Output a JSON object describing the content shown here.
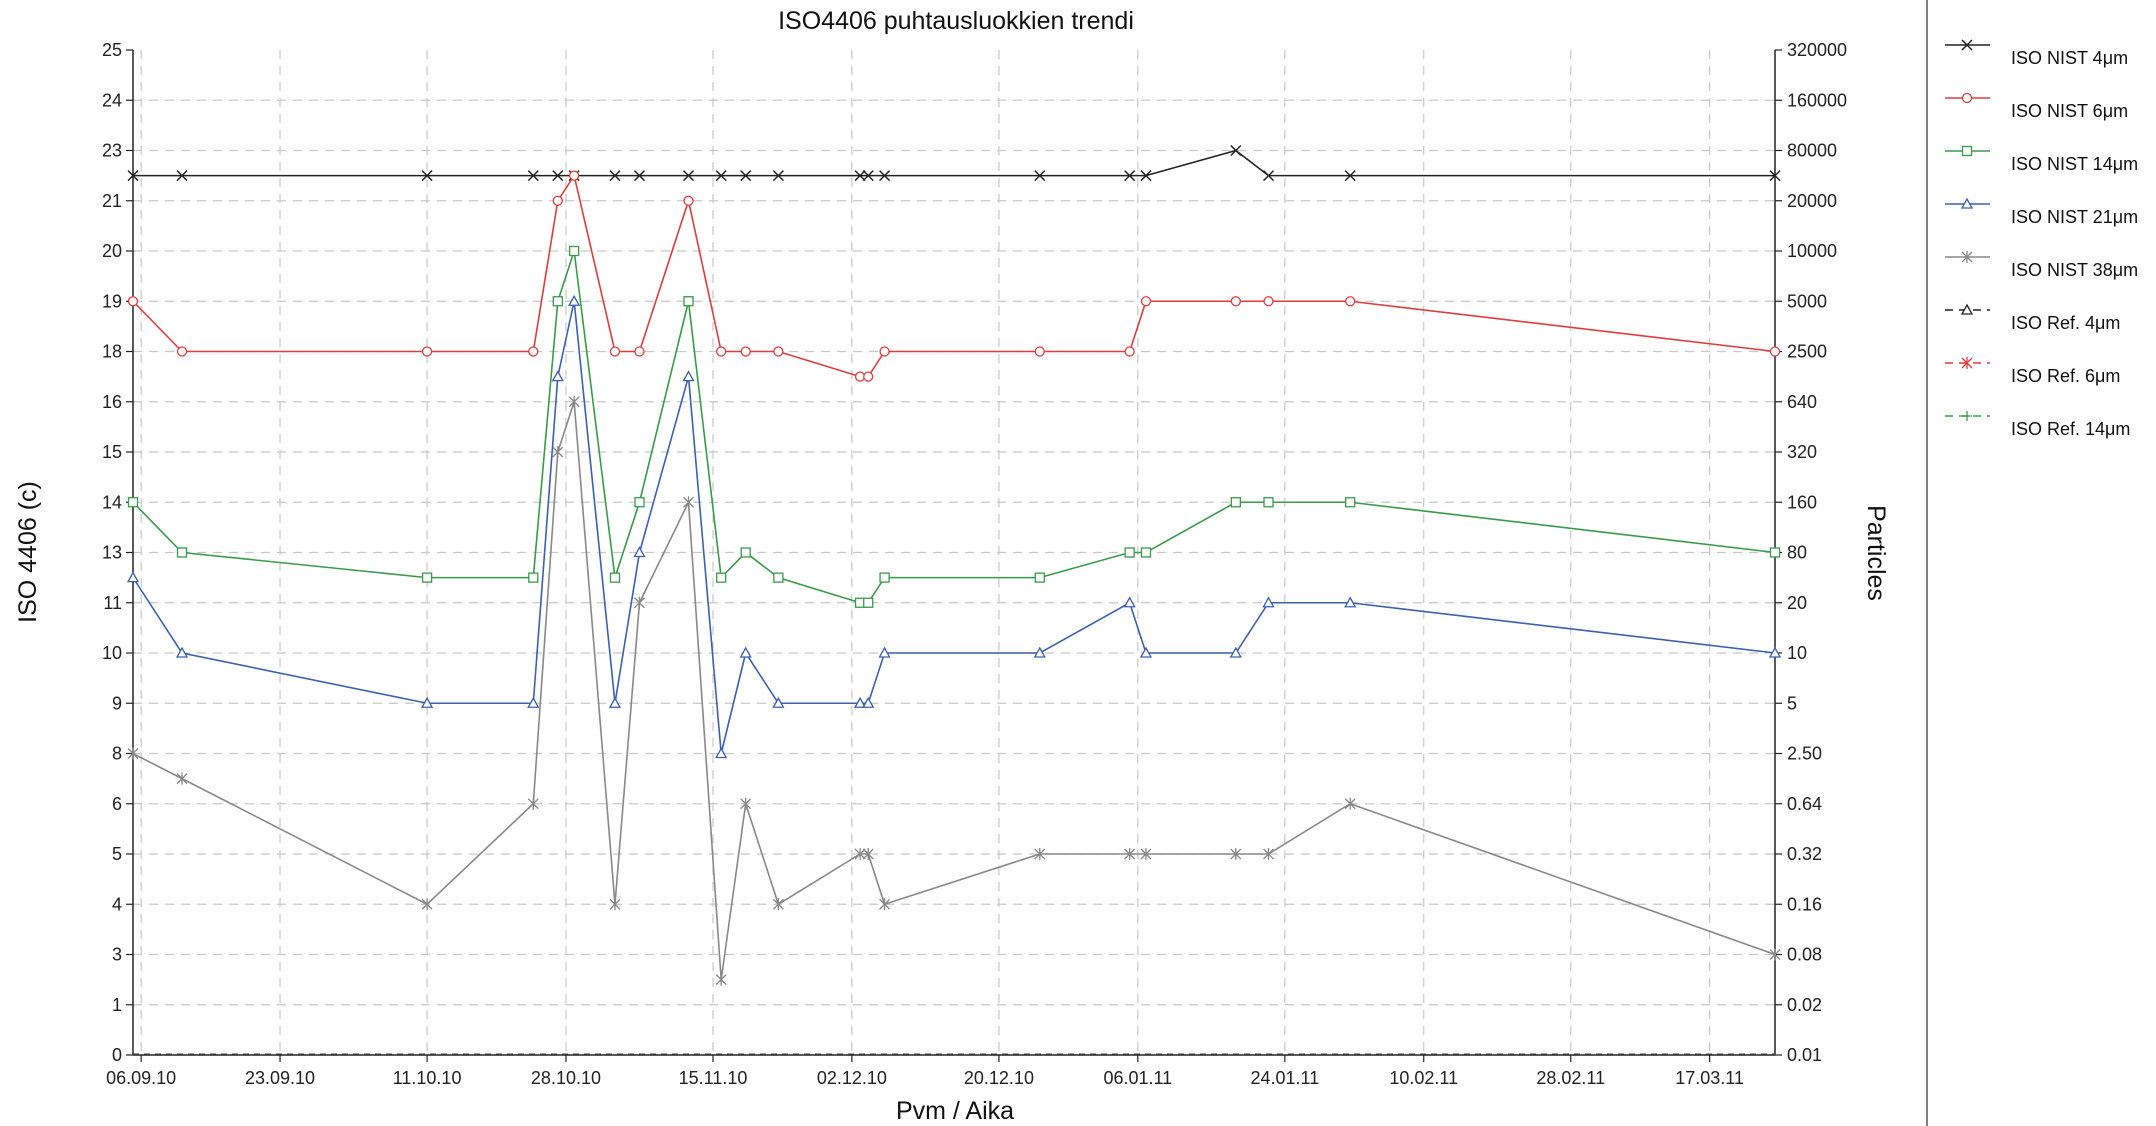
{
  "chart_data": {
    "type": "line",
    "title": "ISO4406 puhtausluokkien trendi",
    "xlabel": "Pvm / Aika",
    "ylabel": "ISO 4406 (c)",
    "ylabel_right": "Particles",
    "x_tick_labels": [
      "06.09.10",
      "23.09.10",
      "11.10.10",
      "28.10.10",
      "15.11.10",
      "02.12.10",
      "20.12.10",
      "06.01.11",
      "24.01.11",
      "10.02.11",
      "28.02.11",
      "17.03.11"
    ],
    "y_tick_labels": [
      "0",
      "1",
      "2",
      "3",
      "4",
      "5",
      "6",
      "8",
      "9",
      "10",
      "11",
      "13",
      "14",
      "15",
      "16",
      "18",
      "19",
      "20",
      "21",
      "23",
      "24",
      "25"
    ],
    "y_right_tick_labels": [
      "0.01",
      "0.02",
      "0.08",
      "0.16",
      "0.32",
      "0.64",
      "2.50",
      "5",
      "10",
      "20",
      "80",
      "160",
      "320",
      "640",
      "2500",
      "5000",
      "10000",
      "20000",
      "80000",
      "160000",
      "320000"
    ],
    "grid": true,
    "legend_position": "right",
    "x_dates": [
      "05.09.10",
      "11.09.10",
      "11.10.10",
      "24.10.10",
      "27.10.10",
      "29.10.10",
      "03.11.10",
      "06.11.10",
      "12.11.10",
      "16.11.10",
      "19.11.10",
      "23.11.10",
      "03.12.10",
      "04.12.10",
      "06.12.10",
      "25.12.10",
      "05.01.11",
      "07.01.11",
      "18.01.11",
      "22.01.11",
      "01.02.11",
      "25.03.11"
    ],
    "series": [
      {
        "name": "ISO NIST 4μm",
        "color": "#222222",
        "marker": "x",
        "dash": "solid",
        "values": [
          22,
          22,
          22,
          22,
          22,
          22,
          22,
          22,
          22,
          22,
          22,
          22,
          22,
          22,
          22,
          22,
          22,
          22,
          23,
          22,
          22,
          22
        ]
      },
      {
        "name": "ISO NIST 6μm",
        "color": "#e03c3c",
        "marker": "circle",
        "dash": "solid",
        "values": [
          19,
          18,
          18,
          18,
          21,
          22,
          18,
          18,
          21,
          18,
          18,
          18,
          17,
          17,
          18,
          18,
          18,
          19,
          19,
          19,
          19,
          18
        ]
      },
      {
        "name": "ISO NIST 14μm",
        "color": "#3a9a4a",
        "marker": "square",
        "dash": "solid",
        "values": [
          14,
          13,
          12,
          12,
          19,
          20,
          12,
          14,
          19,
          12,
          13,
          12,
          11,
          11,
          12,
          12,
          13,
          13,
          14,
          14,
          14,
          13
        ]
      },
      {
        "name": "ISO NIST 21μm",
        "color": "#3d5fb0",
        "marker": "triangle",
        "dash": "solid",
        "values": [
          12,
          10,
          9,
          9,
          17,
          19,
          9,
          13,
          17,
          8,
          10,
          9,
          9,
          9,
          10,
          10,
          11,
          10,
          10,
          11,
          11,
          10
        ]
      },
      {
        "name": "ISO NIST 38μm",
        "color": "#888888",
        "marker": "star",
        "dash": "solid",
        "values": [
          8,
          7,
          4,
          6,
          15,
          16,
          4,
          11,
          14,
          2,
          6,
          4,
          5,
          5,
          4,
          5,
          5,
          5,
          5,
          5,
          6,
          3
        ]
      },
      {
        "name": "ISO Ref. 4μm",
        "color": "#222222",
        "marker": "triangle",
        "dash": "dashed",
        "values": []
      },
      {
        "name": "ISO Ref. 6μm",
        "color": "#e03c3c",
        "marker": "star",
        "dash": "dashed",
        "values": []
      },
      {
        "name": "ISO Ref. 14μm",
        "color": "#3a9a4a",
        "marker": "tick",
        "dash": "dashed",
        "values": []
      }
    ]
  }
}
